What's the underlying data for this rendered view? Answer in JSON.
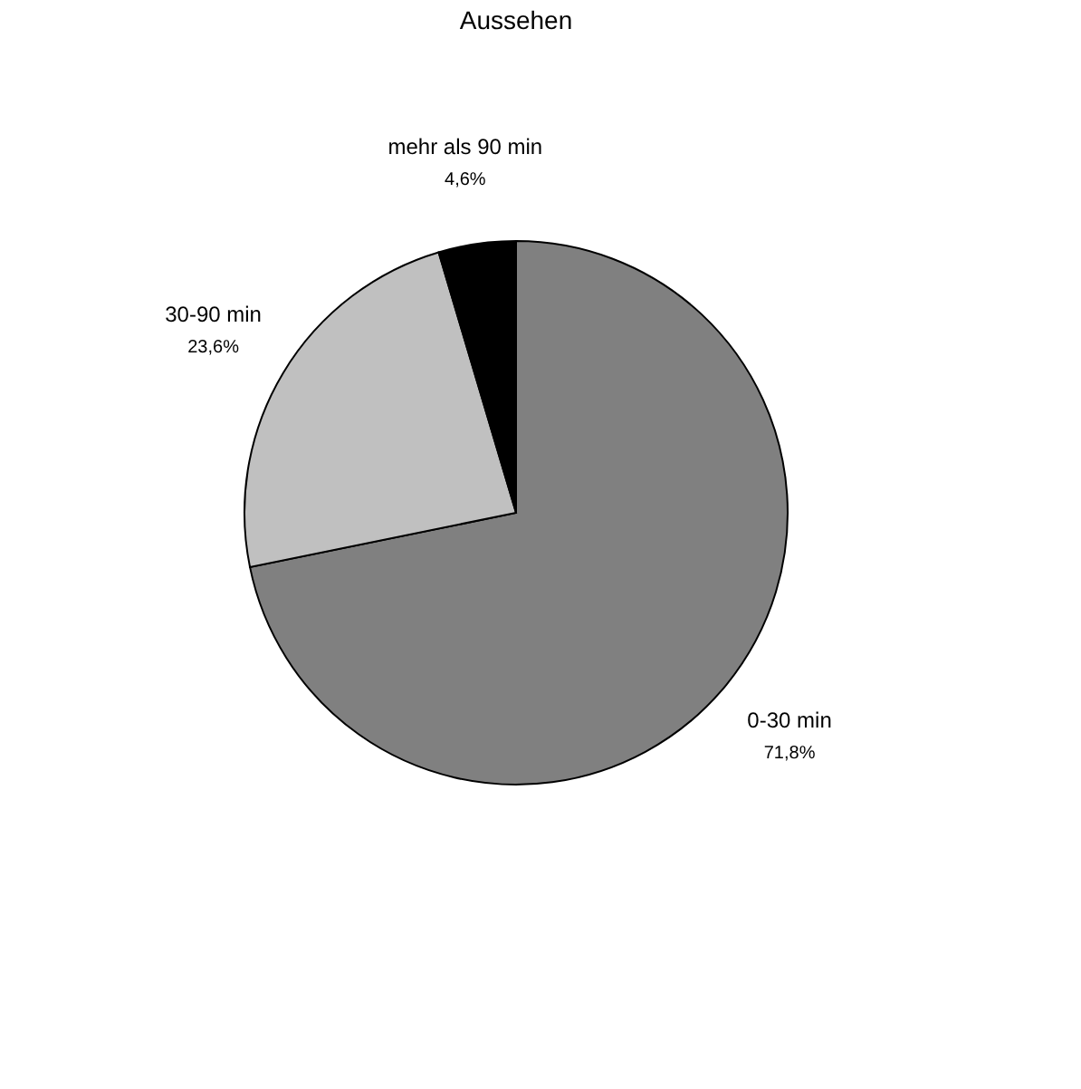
{
  "chart_data": {
    "type": "pie",
    "title": "Aussehen",
    "categories": [
      "0-30 min",
      "30-90 min",
      "mehr als 90 min"
    ],
    "values": [
      71.8,
      23.6,
      4.6
    ],
    "value_labels": [
      "71,8%",
      "23,6%",
      "4,6%"
    ],
    "colors": [
      "#808080",
      "#c0c0c0",
      "#000000"
    ],
    "legend": false
  }
}
